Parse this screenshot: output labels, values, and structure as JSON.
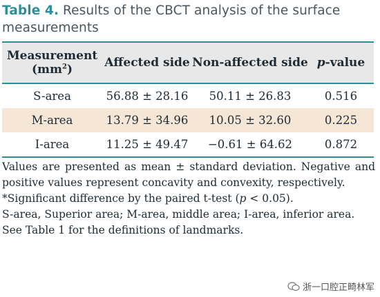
{
  "caption": {
    "table_number": "Table 4.",
    "title": "Results of the CBCT analysis of the surface measurements"
  },
  "table": {
    "headers": {
      "measurement_line1": "Measurement",
      "measurement_line2_open": "(mm",
      "measurement_unit_sup": "2",
      "measurement_line2_close": ")",
      "affected": "Affected side",
      "non_affected": "Non-affected side",
      "p_value_p": "p",
      "p_value_rest": "-value"
    },
    "rows": [
      {
        "measurement": "S-area",
        "affected": "56.88 ± 28.16",
        "non_affected": "50.11 ± 26.83",
        "p": "0.516"
      },
      {
        "measurement": "M-area",
        "affected": "13.79 ± 34.96",
        "non_affected": "10.05 ± 32.60",
        "p": "0.225"
      },
      {
        "measurement": "I-area",
        "affected": "11.25 ± 49.47",
        "non_affected": "−0.61 ± 64.62",
        "p": "0.872"
      }
    ]
  },
  "notes": {
    "note1": "Values are presented as mean ± standard deviation. Negative and positive values represent concavity and convexity, respectively.",
    "note2_before": "*Significant difference by the paired t-test (",
    "note2_p": "p",
    "note2_after": " < 0.05).",
    "note3": "S-area, Superior area; M-area, middle area; I-area, inferior area.",
    "note4": "See Table 1 for the definitions of landmarks."
  },
  "watermark": {
    "text": "浙一口腔正畸林军",
    "icon": "wechat-icon"
  }
}
